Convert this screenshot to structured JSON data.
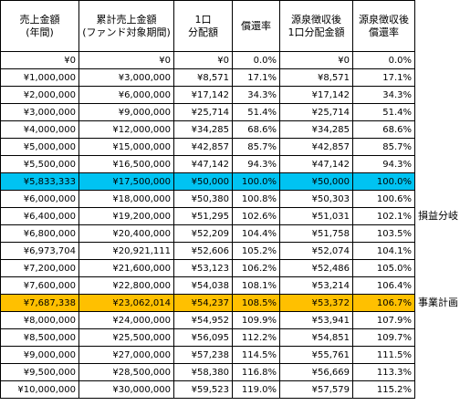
{
  "headers": [
    {
      "line1": "売上金額",
      "line2": "(年間)"
    },
    {
      "line1": "累計売上金額",
      "line2": "(ファンド対象期間)"
    },
    {
      "line1": "1口",
      "line2": "分配額"
    },
    {
      "line1": "償還率",
      "line2": ""
    },
    {
      "line1": "源泉徴収後",
      "line2": "1口分配金額"
    },
    {
      "line1": "源泉徴収後",
      "line2": "償還率"
    }
  ],
  "rows": [
    [
      "¥0",
      "¥0",
      "¥0",
      "0.0%",
      "¥0",
      "0.0%"
    ],
    [
      "¥1,000,000",
      "¥3,000,000",
      "¥8,571",
      "17.1%",
      "¥8,571",
      "17.1%"
    ],
    [
      "¥2,000,000",
      "¥6,000,000",
      "¥17,142",
      "34.3%",
      "¥17,142",
      "34.3%"
    ],
    [
      "¥3,000,000",
      "¥9,000,000",
      "¥25,714",
      "51.4%",
      "¥25,714",
      "51.4%"
    ],
    [
      "¥4,000,000",
      "¥12,000,000",
      "¥34,285",
      "68.6%",
      "¥34,285",
      "68.6%"
    ],
    [
      "¥5,000,000",
      "¥15,000,000",
      "¥42,857",
      "85.7%",
      "¥42,857",
      "85.7%"
    ],
    [
      "¥5,500,000",
      "¥16,500,000",
      "¥47,142",
      "94.3%",
      "¥47,142",
      "94.3%"
    ],
    [
      "¥5,833,333",
      "¥17,500,000",
      "¥50,000",
      "100.0%",
      "¥50,000",
      "100.0%"
    ],
    [
      "¥6,000,000",
      "¥18,000,000",
      "¥50,380",
      "100.8%",
      "¥50,303",
      "100.6%"
    ],
    [
      "¥6,400,000",
      "¥19,200,000",
      "¥51,295",
      "102.6%",
      "¥51,031",
      "102.1%"
    ],
    [
      "¥6,800,000",
      "¥20,400,000",
      "¥52,209",
      "104.4%",
      "¥51,758",
      "103.5%"
    ],
    [
      "¥6,973,704",
      "¥20,921,111",
      "¥52,606",
      "105.2%",
      "¥52,074",
      "104.1%"
    ],
    [
      "¥7,200,000",
      "¥21,600,000",
      "¥53,123",
      "106.2%",
      "¥52,486",
      "105.0%"
    ],
    [
      "¥7,600,000",
      "¥22,800,000",
      "¥54,038",
      "108.1%",
      "¥53,214",
      "106.4%"
    ],
    [
      "¥7,687,338",
      "¥23,062,014",
      "¥54,237",
      "108.5%",
      "¥53,372",
      "106.7%"
    ],
    [
      "¥8,000,000",
      "¥24,000,000",
      "¥54,952",
      "109.9%",
      "¥53,941",
      "107.9%"
    ],
    [
      "¥8,500,000",
      "¥25,500,000",
      "¥56,095",
      "112.2%",
      "¥54,851",
      "109.7%"
    ],
    [
      "¥9,000,000",
      "¥27,000,000",
      "¥57,238",
      "114.5%",
      "¥55,761",
      "111.5%"
    ],
    [
      "¥9,500,000",
      "¥28,500,000",
      "¥58,380",
      "116.8%",
      "¥56,669",
      "113.3%"
    ],
    [
      "¥10,000,000",
      "¥30,000,000",
      "¥59,523",
      "119.0%",
      "¥57,579",
      "115.2%"
    ]
  ],
  "highlights": {
    "break_even_row": 7,
    "business_plan_row": 14,
    "cyan": "#00c3f2",
    "orange": "#ffc000"
  },
  "notes": {
    "break_even": "損益分岐",
    "business_plan": "事業計画"
  }
}
